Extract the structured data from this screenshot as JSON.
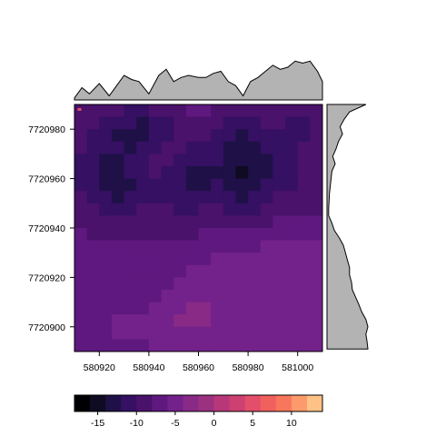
{
  "chart_data": {
    "type": "heatmap",
    "title": "",
    "xlabel": "",
    "ylabel": "",
    "xlim": [
      580910,
      581010
    ],
    "ylim": [
      7720890,
      7720990
    ],
    "x_ticks": [
      580920,
      580940,
      580960,
      580980,
      581000
    ],
    "x_tick_labels": [
      "580920",
      "580940",
      "580960",
      "580980",
      "581000"
    ],
    "y_ticks": [
      7720900,
      7720920,
      7720940,
      7720960,
      7720980
    ],
    "y_tick_labels": [
      "7720900",
      "7720920",
      "7720940",
      "7720960",
      "7720980"
    ],
    "raster": {
      "ncol": 20,
      "nrow": 20,
      "z": [
        [
          -9,
          -9,
          -10,
          -10,
          -11,
          -11,
          -10,
          -10,
          -9,
          -8,
          -8,
          -9,
          -9,
          -10,
          -10,
          -9,
          -9,
          -10,
          -10,
          -10
        ],
        [
          -10,
          -10,
          -11,
          -12,
          -12,
          -13,
          -12,
          -11,
          -10,
          -9,
          -9,
          -10,
          -11,
          -11,
          -11,
          -10,
          -10,
          -11,
          -11,
          -10
        ],
        [
          -10,
          -11,
          -12,
          -13,
          -13,
          -13,
          -12,
          -11,
          -10,
          -10,
          -10,
          -11,
          -12,
          -13,
          -12,
          -11,
          -11,
          -11,
          -11,
          -10
        ],
        [
          -10,
          -11,
          -12,
          -12,
          -13,
          -12,
          -11,
          -10,
          -10,
          -11,
          -11,
          -12,
          -13,
          -14,
          -14,
          -12,
          -11,
          -11,
          -10,
          -10
        ],
        [
          -11,
          -12,
          -13,
          -13,
          -12,
          -11,
          -10,
          -10,
          -11,
          -12,
          -12,
          -12,
          -13,
          -14,
          -14,
          -13,
          -12,
          -11,
          -10,
          -10
        ],
        [
          -11,
          -12,
          -13,
          -13,
          -12,
          -11,
          -10,
          -11,
          -12,
          -13,
          -13,
          -13,
          -14,
          -15,
          -14,
          -13,
          -12,
          -11,
          -10,
          -10
        ],
        [
          -11,
          -12,
          -13,
          -14,
          -13,
          -12,
          -11,
          -11,
          -12,
          -13,
          -13,
          -12,
          -13,
          -14,
          -14,
          -12,
          -11,
          -11,
          -10,
          -10
        ],
        [
          -10,
          -11,
          -12,
          -13,
          -12,
          -11,
          -11,
          -11,
          -11,
          -12,
          -12,
          -12,
          -12,
          -13,
          -12,
          -11,
          -10,
          -10,
          -10,
          -9
        ],
        [
          -9,
          -10,
          -11,
          -11,
          -11,
          -10,
          -10,
          -10,
          -11,
          -11,
          -10,
          -10,
          -11,
          -11,
          -11,
          -10,
          -9,
          -9,
          -9,
          -9
        ],
        [
          -9,
          -9,
          -10,
          -10,
          -10,
          -10,
          -9,
          -9,
          -10,
          -10,
          -9,
          -9,
          -10,
          -10,
          -10,
          -9,
          -8,
          -8,
          -8,
          -8
        ],
        [
          -8,
          -9,
          -9,
          -9,
          -9,
          -9,
          -9,
          -9,
          -9,
          -9,
          -8,
          -8,
          -8,
          -8,
          -8,
          -8,
          -7,
          -7,
          -7,
          -7
        ],
        [
          -8,
          -8,
          -8,
          -8,
          -8,
          -8,
          -8,
          -8,
          -8,
          -8,
          -7,
          -7,
          -7,
          -7,
          -7,
          -6,
          -6,
          -6,
          -6,
          -6
        ],
        [
          -7,
          -7,
          -7,
          -7,
          -7,
          -7,
          -7,
          -7,
          -7,
          -7,
          -7,
          -6,
          -6,
          -6,
          -6,
          -6,
          -6,
          -6,
          -5,
          -5
        ],
        [
          -7,
          -7,
          -7,
          -7,
          -7,
          -7,
          -7,
          -7,
          -7,
          -6,
          -6,
          -6,
          -6,
          -6,
          -6,
          -6,
          -5,
          -5,
          -5,
          -5
        ],
        [
          -7,
          -7,
          -7,
          -7,
          -7,
          -7,
          -7,
          -7,
          -6,
          -6,
          -6,
          -6,
          -6,
          -6,
          -6,
          -6,
          -6,
          -5,
          -5,
          -5
        ],
        [
          -7,
          -7,
          -7,
          -7,
          -7,
          -7,
          -7,
          -6,
          -6,
          -5,
          -5,
          -6,
          -6,
          -6,
          -6,
          -6,
          -6,
          -6,
          -5,
          -5
        ],
        [
          -7,
          -7,
          -7,
          -7,
          -7,
          -7,
          -6,
          -6,
          -5,
          -4,
          -4,
          -5,
          -6,
          -6,
          -6,
          -6,
          -6,
          -5,
          -5,
          -5
        ],
        [
          -7,
          -7,
          -7,
          -6,
          -6,
          -6,
          -6,
          -5,
          -4,
          -4,
          -4,
          -5,
          -6,
          -6,
          -6,
          -6,
          -6,
          -6,
          -5,
          -5
        ],
        [
          -7,
          -7,
          -7,
          -6,
          -6,
          -6,
          -6,
          -6,
          -5,
          -5,
          -5,
          -6,
          -6,
          -6,
          -6,
          -6,
          -6,
          -6,
          -6,
          -6
        ],
        [
          -7,
          -7,
          -7,
          -7,
          -7,
          -7,
          -6,
          -6,
          -6,
          -6,
          -6,
          -6,
          -6,
          -6,
          -6,
          -6,
          -6,
          -6,
          -6,
          -6
        ]
      ],
      "highlights": [
        {
          "x": 580912,
          "y": 7720988,
          "value": 5
        }
      ]
    },
    "top_marginal": {
      "x": [
        580910,
        580913,
        580916,
        580920,
        580924,
        580927,
        580930,
        580933,
        580936,
        580940,
        580944,
        580947,
        580950,
        580953,
        580956,
        580960,
        580963,
        580966,
        580969,
        580972,
        580975,
        580978,
        580981,
        580984,
        580987,
        580990,
        580993,
        580996,
        580999,
        581002,
        581005,
        581008,
        581010
      ],
      "values": [
        0.05,
        0.3,
        0.15,
        0.4,
        0.1,
        0.35,
        0.6,
        0.5,
        0.45,
        0.15,
        0.6,
        0.75,
        0.45,
        0.55,
        0.6,
        0.55,
        0.55,
        0.65,
        0.7,
        0.45,
        0.35,
        0.1,
        0.45,
        0.55,
        0.7,
        0.85,
        0.75,
        0.8,
        0.95,
        0.9,
        0.95,
        0.7,
        0.45
      ]
    },
    "right_marginal": {
      "y": [
        7720990,
        7720987,
        7720984,
        7720981,
        7720978,
        7720975,
        7720972,
        7720969,
        7720966,
        7720963,
        7720960,
        7720957,
        7720954,
        7720951,
        7720948,
        7720945,
        7720942,
        7720939,
        7720936,
        7720933,
        7720930,
        7720927,
        7720924,
        7720921,
        7720918,
        7720915,
        7720912,
        7720909,
        7720906,
        7720903,
        7720900,
        7720897,
        7720894,
        7720891
      ],
      "values": [
        0.95,
        0.55,
        0.42,
        0.32,
        0.38,
        0.28,
        0.22,
        0.14,
        0.2,
        0.12,
        0.1,
        0.08,
        0.06,
        0.05,
        0.04,
        0.04,
        0.12,
        0.18,
        0.3,
        0.4,
        0.45,
        0.5,
        0.55,
        0.55,
        0.6,
        0.62,
        0.7,
        0.78,
        0.85,
        0.95,
        1.0,
        0.95,
        0.98,
        1.0
      ]
    },
    "colorbar": {
      "min": -18,
      "max": 14,
      "breaks": [
        -18,
        -16,
        -14,
        -12,
        -10,
        -8,
        -6,
        -4,
        -2,
        0,
        2,
        4,
        6,
        8,
        10,
        12,
        14
      ],
      "colors": [
        "#000004",
        "#0e0b22",
        "#1f1147",
        "#351063",
        "#4a126b",
        "#5f187f",
        "#73228b",
        "#882a86",
        "#9c3180",
        "#b73779",
        "#cd4071",
        "#e34f6a",
        "#f0605d",
        "#f8765c",
        "#fc9a6b",
        "#fec287",
        "#fcfdbf"
      ],
      "tick_values": [
        -15,
        -10,
        -5,
        0,
        5,
        10
      ],
      "tick_labels": [
        "-15",
        "-10",
        "-5",
        "0",
        "5",
        "10"
      ]
    }
  }
}
